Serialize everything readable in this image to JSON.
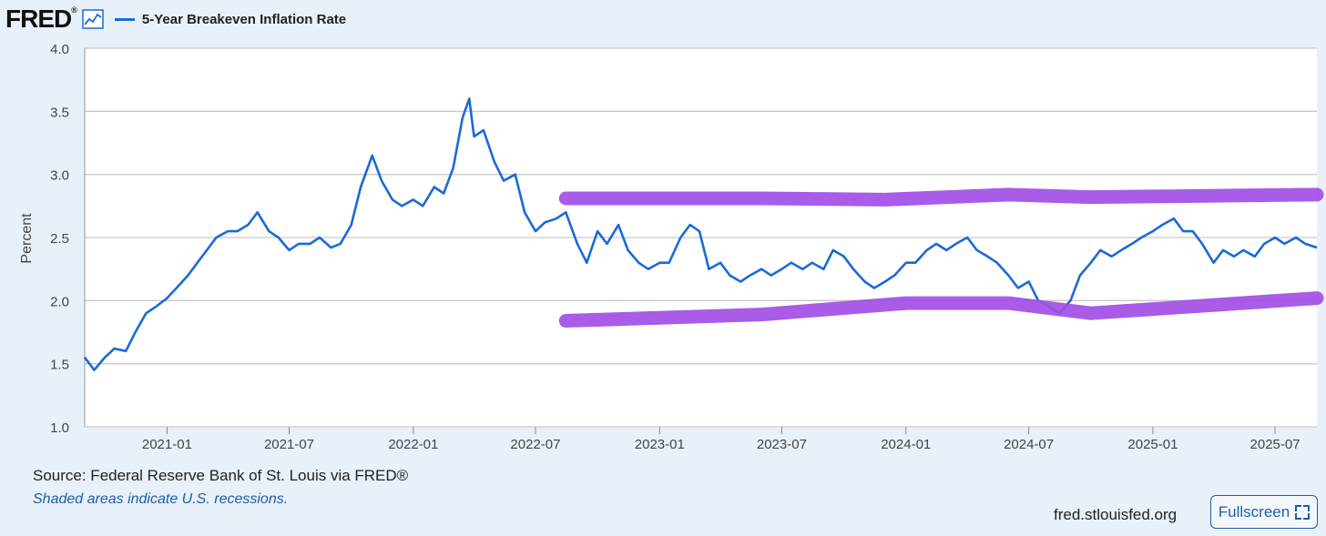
{
  "header": {
    "logo": "FRED",
    "logo_mark": "®",
    "graph_icon": "line-graph-icon",
    "series_title": "5-Year Breakeven Inflation Rate"
  },
  "footer": {
    "source": "Source: Federal Reserve Bank of St. Louis via FRED®",
    "note": "Shaded areas indicate U.S. recessions.",
    "site": "fred.stlouisfed.org",
    "fullscreen_label": "Fullscreen",
    "fullscreen_icon": "expand-icon"
  },
  "colors": {
    "series": "#1a6ad9",
    "annotation": "#a14ee6",
    "background": "#e8f0f9",
    "plot_bg": "#ffffff",
    "grid": "#c9c9c9"
  },
  "chart_data": {
    "type": "line",
    "title": "5-Year Breakeven Inflation Rate",
    "ylabel": "Percent",
    "xlabel": "",
    "ylim": [
      1.0,
      4.0
    ],
    "xlim": [
      "2020-09-01",
      "2025-09-01"
    ],
    "y_ticks": [
      "1.0",
      "1.5",
      "2.0",
      "2.5",
      "3.0",
      "3.5",
      "4.0"
    ],
    "x_ticks": [
      "2021-01",
      "2021-07",
      "2022-01",
      "2022-07",
      "2023-01",
      "2023-07",
      "2024-01",
      "2024-07",
      "2025-01",
      "2025-07"
    ],
    "grid": "horizontal",
    "series": [
      {
        "name": "5-Year Breakeven Inflation Rate",
        "x": [
          "2020-09-01",
          "2020-09-15",
          "2020-10-01",
          "2020-10-15",
          "2020-11-01",
          "2020-11-15",
          "2020-12-01",
          "2020-12-15",
          "2021-01-01",
          "2021-01-15",
          "2021-02-01",
          "2021-02-15",
          "2021-03-01",
          "2021-03-15",
          "2021-04-01",
          "2021-04-15",
          "2021-05-01",
          "2021-05-15",
          "2021-06-01",
          "2021-06-15",
          "2021-07-01",
          "2021-07-15",
          "2021-08-01",
          "2021-08-15",
          "2021-09-01",
          "2021-09-15",
          "2021-10-01",
          "2021-10-15",
          "2021-11-01",
          "2021-11-15",
          "2021-12-01",
          "2021-12-15",
          "2022-01-01",
          "2022-01-15",
          "2022-02-01",
          "2022-02-15",
          "2022-03-01",
          "2022-03-15",
          "2022-03-25",
          "2022-04-01",
          "2022-04-15",
          "2022-05-01",
          "2022-05-15",
          "2022-06-01",
          "2022-06-15",
          "2022-07-01",
          "2022-07-15",
          "2022-08-01",
          "2022-08-15",
          "2022-09-01",
          "2022-09-15",
          "2022-10-01",
          "2022-10-15",
          "2022-11-01",
          "2022-11-15",
          "2022-12-01",
          "2022-12-15",
          "2023-01-01",
          "2023-01-15",
          "2023-02-01",
          "2023-02-15",
          "2023-03-01",
          "2023-03-15",
          "2023-04-01",
          "2023-04-15",
          "2023-05-01",
          "2023-05-15",
          "2023-06-01",
          "2023-06-15",
          "2023-07-01",
          "2023-07-15",
          "2023-08-01",
          "2023-08-15",
          "2023-09-01",
          "2023-09-15",
          "2023-10-01",
          "2023-10-15",
          "2023-11-01",
          "2023-11-15",
          "2023-12-01",
          "2023-12-15",
          "2024-01-01",
          "2024-01-15",
          "2024-02-01",
          "2024-02-15",
          "2024-03-01",
          "2024-03-15",
          "2024-04-01",
          "2024-04-15",
          "2024-05-01",
          "2024-05-15",
          "2024-06-01",
          "2024-06-15",
          "2024-07-01",
          "2024-07-15",
          "2024-08-01",
          "2024-08-15",
          "2024-09-01",
          "2024-09-15",
          "2024-10-01",
          "2024-10-15",
          "2024-11-01",
          "2024-11-15",
          "2024-12-01",
          "2024-12-15",
          "2025-01-01",
          "2025-01-15",
          "2025-02-01",
          "2025-02-15",
          "2025-03-01",
          "2025-03-15",
          "2025-04-01",
          "2025-04-15",
          "2025-05-01",
          "2025-05-15",
          "2025-06-01",
          "2025-06-15",
          "2025-07-01",
          "2025-07-15",
          "2025-08-01",
          "2025-08-15",
          "2025-09-01"
        ],
        "values": [
          1.55,
          1.45,
          1.55,
          1.62,
          1.6,
          1.75,
          1.9,
          1.95,
          2.02,
          2.1,
          2.2,
          2.3,
          2.4,
          2.5,
          2.55,
          2.55,
          2.6,
          2.7,
          2.55,
          2.5,
          2.4,
          2.45,
          2.45,
          2.5,
          2.42,
          2.45,
          2.6,
          2.9,
          3.15,
          2.95,
          2.8,
          2.75,
          2.8,
          2.75,
          2.9,
          2.85,
          3.05,
          3.45,
          3.6,
          3.3,
          3.35,
          3.1,
          2.95,
          3.0,
          2.7,
          2.55,
          2.62,
          2.65,
          2.7,
          2.45,
          2.3,
          2.55,
          2.45,
          2.6,
          2.4,
          2.3,
          2.25,
          2.3,
          2.3,
          2.5,
          2.6,
          2.55,
          2.25,
          2.3,
          2.2,
          2.15,
          2.2,
          2.25,
          2.2,
          2.25,
          2.3,
          2.25,
          2.3,
          2.25,
          2.4,
          2.35,
          2.25,
          2.15,
          2.1,
          2.15,
          2.2,
          2.3,
          2.3,
          2.4,
          2.45,
          2.4,
          2.45,
          2.5,
          2.4,
          2.35,
          2.3,
          2.2,
          2.1,
          2.15,
          2.0,
          1.95,
          1.9,
          2.0,
          2.2,
          2.3,
          2.4,
          2.35,
          2.4,
          2.45,
          2.5,
          2.55,
          2.6,
          2.65,
          2.55,
          2.55,
          2.45,
          2.3,
          2.4,
          2.35,
          2.4,
          2.35,
          2.45,
          2.5,
          2.45,
          2.5,
          2.45,
          2.42
        ]
      }
    ],
    "annotations": [
      {
        "type": "hand-drawn-line",
        "color": "#a14ee6",
        "x": [
          "2022-08-15",
          "2023-06-01",
          "2023-12-01",
          "2024-06-01",
          "2024-10-01",
          "2025-09-01"
        ],
        "values": [
          2.81,
          2.81,
          2.8,
          2.84,
          2.82,
          2.84
        ]
      },
      {
        "type": "hand-drawn-line",
        "color": "#a14ee6",
        "x": [
          "2022-08-15",
          "2023-06-01",
          "2024-01-01",
          "2024-06-01",
          "2024-10-01",
          "2025-09-01"
        ],
        "values": [
          1.84,
          1.89,
          1.98,
          1.98,
          1.9,
          2.02
        ]
      }
    ]
  }
}
